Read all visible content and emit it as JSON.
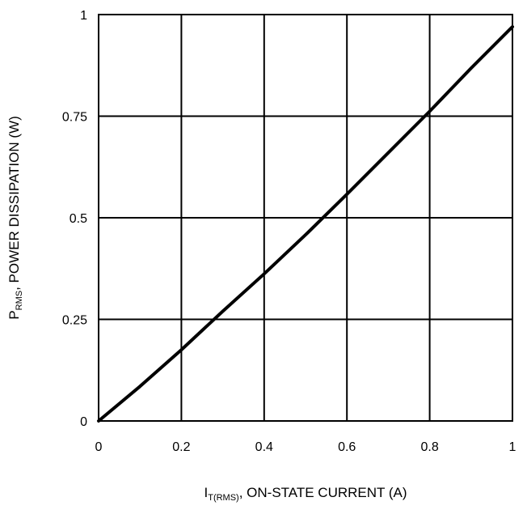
{
  "chart_data": {
    "type": "line",
    "title": "",
    "xlabel": {
      "main": "I",
      "sub": "T(RMS)",
      "rest": ", ON-STATE CURRENT (A)"
    },
    "ylabel": {
      "main": "P",
      "sub": "RMS",
      "rest": ", POWER DISSIPATION (W)"
    },
    "xlim": [
      0,
      1
    ],
    "ylim": [
      0,
      1
    ],
    "x_ticks": [
      0,
      0.2,
      0.4,
      0.6,
      0.8,
      1
    ],
    "x_tick_labels": [
      "0",
      "0.2",
      "0.4",
      "0.6",
      "0.8",
      "1"
    ],
    "y_ticks": [
      0,
      0.25,
      0.5,
      0.75,
      1
    ],
    "y_tick_labels": [
      "0",
      "0.25",
      "0.5",
      "0.75",
      "1"
    ],
    "grid": true,
    "series": [
      {
        "x": [
          0,
          0.1,
          0.2,
          0.3,
          0.4,
          0.5,
          0.6,
          0.7,
          0.8,
          0.9,
          1.0
        ],
        "y": [
          0,
          0.085,
          0.175,
          0.27,
          0.362,
          0.458,
          0.558,
          0.66,
          0.762,
          0.868,
          0.97
        ],
        "color": "#000000"
      }
    ]
  }
}
